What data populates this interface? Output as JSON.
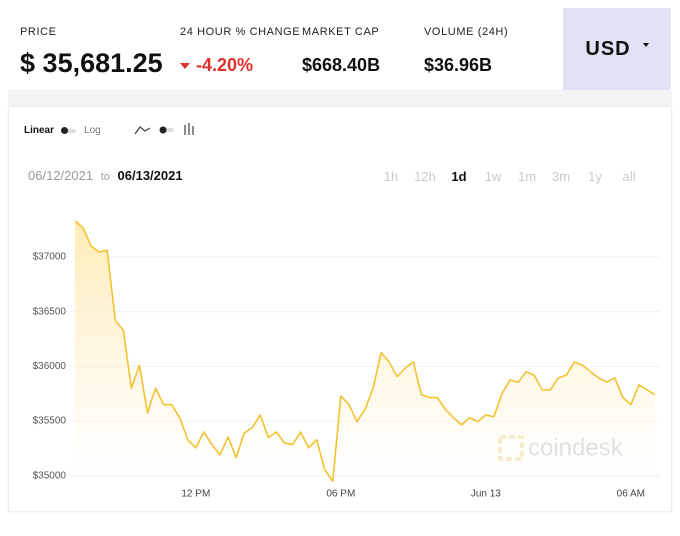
{
  "header": {
    "price": {
      "label": "PRICE",
      "currency": "$",
      "value": "35,681.25"
    },
    "change": {
      "label": "24 HOUR % CHANGE",
      "value": "-4.20%"
    },
    "market_cap": {
      "label": "MARKET CAP",
      "value": "$668.40B"
    },
    "volume": {
      "label": "VOLUME (24H)",
      "value": "$36.96B"
    },
    "currency_selector": "USD"
  },
  "scale_toggle": {
    "linear": "Linear",
    "log": "Log"
  },
  "date_range": {
    "from": "06/12/2021",
    "separator": "to",
    "to": "06/13/2021"
  },
  "timeframes": {
    "options": [
      "1h",
      "12h",
      "1d",
      "1w",
      "1m",
      "3m",
      "1y",
      "all"
    ],
    "active": 2
  },
  "chart_data": {
    "type": "area",
    "watermark": "coindesk",
    "color": "#f2c230",
    "categories": [
      null,
      null,
      null,
      null,
      null,
      null,
      null,
      null,
      null,
      null,
      null,
      null,
      null,
      null,
      null,
      "12 PM",
      null,
      null,
      null,
      null,
      null,
      null,
      null,
      null,
      null,
      null,
      null,
      null,
      null,
      null,
      null,
      null,
      null,
      "06 PM",
      null,
      null,
      null,
      null,
      null,
      null,
      null,
      null,
      null,
      null,
      null,
      null,
      null,
      null,
      null,
      null,
      null,
      "Jun 13",
      null,
      null,
      null,
      null,
      null,
      null,
      null,
      null,
      null,
      null,
      null,
      null,
      null,
      null,
      null,
      null,
      null,
      "06 AM",
      null,
      null,
      null
    ],
    "values": [
      37330,
      37265,
      37100,
      37045,
      37060,
      36420,
      36330,
      35800,
      36010,
      35575,
      35800,
      35650,
      35650,
      35530,
      35330,
      35255,
      35400,
      35285,
      35190,
      35355,
      35165,
      35390,
      35440,
      35555,
      35350,
      35400,
      35300,
      35285,
      35400,
      35255,
      35330,
      35055,
      34950,
      35730,
      35650,
      35495,
      35605,
      35800,
      36125,
      36040,
      35905,
      35985,
      36040,
      35740,
      35715,
      35715,
      35605,
      35530,
      35465,
      35530,
      35495,
      35555,
      35540,
      35750,
      35875,
      35855,
      35950,
      35920,
      35785,
      35785,
      35895,
      35920,
      36040,
      36010,
      35950,
      35895,
      35855,
      35895,
      35715,
      35650,
      35830,
      35785,
      35740
    ],
    "ylim": [
      34870,
      37520
    ],
    "yticks": [
      {
        "value": 35000,
        "label": "$35000"
      },
      {
        "value": 35500,
        "label": "$35500"
      },
      {
        "value": 36000,
        "label": "$36000"
      },
      {
        "value": 36500,
        "label": "$36500"
      },
      {
        "value": 37000,
        "label": "$37000"
      }
    ],
    "grid": true
  }
}
